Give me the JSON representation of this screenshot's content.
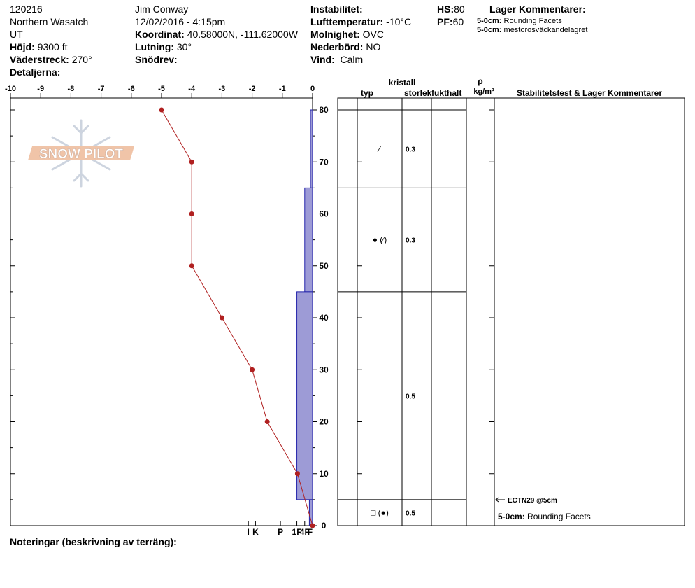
{
  "header": {
    "id": "120216",
    "region": "Northern Wasatch",
    "state": "UT",
    "elevation_label": "Höjd:",
    "elevation": "9300 ft",
    "aspect_label": "Väderstreck:",
    "aspect": "270°",
    "details_label": "Detaljerna:",
    "observer": "Jim Conway",
    "datetime": "12/02/2016 - 4:15pm",
    "coord_label": "Koordinat:",
    "coord": "40.58000N, -111.62000W",
    "slope_label": "Lutning:",
    "slope": "30°",
    "wind_loading_label": "Snödrev:",
    "instability_label": "Instabilitet:",
    "air_temp_label": "Lufttemperatur:",
    "air_temp": "-10°C",
    "sky_label": "Molnighet:",
    "sky": "OVC",
    "precip_label": "Nederbörd:",
    "precip": "NO",
    "wind_label": "Vind:",
    "wind": "Calm",
    "hs_label": "HS:",
    "hs": "80",
    "pf_label": "PF:",
    "pf": "60",
    "layer_comments_title": "Lager Kommentarer:",
    "layer_comments": [
      {
        "depth": "5-0cm:",
        "text": "Rounding Facets"
      },
      {
        "depth": "5-0cm:",
        "text": "mestorosväckandelagret"
      }
    ]
  },
  "logo_text": "SNOW PILOT",
  "notes_label": "Noteringar (beskrivning av terräng):",
  "table": {
    "header_crystal": "kristall",
    "col_type": "typ",
    "col_size": "storlek",
    "col_moisture": "fukthalt",
    "col_density_symbol": "ρ",
    "col_density_unit": "kg/m³",
    "col_comments": "Stabilitetstest & Lager Kommentarer",
    "layers": [
      {
        "top": 80,
        "bottom": 65,
        "type_symbol": "⁄",
        "size": "0.3"
      },
      {
        "top": 65,
        "bottom": 45,
        "type_symbol": "● (⁄)",
        "size": "0.3"
      },
      {
        "top": 45,
        "bottom": 5,
        "type_symbol": "",
        "size": "0.5"
      },
      {
        "top": 5,
        "bottom": 0,
        "type_symbol": "□ (●)",
        "size": "0.5"
      }
    ],
    "test_result": "ECTN29 @5cm",
    "bottom_comment_depth": "5-0cm:",
    "bottom_comment_text": "Rounding Facets"
  },
  "chart_data": {
    "type": "line",
    "temp_axis_ticks": [
      -10,
      -9,
      -8,
      -7,
      -6,
      -5,
      -4,
      -3,
      -2,
      -1,
      0
    ],
    "depth_axis_ticks": [
      0,
      10,
      20,
      30,
      40,
      50,
      60,
      70,
      80
    ],
    "hardness_ticks": [
      {
        "label": "I",
        "value": 9
      },
      {
        "label": "K",
        "value": 8
      },
      {
        "label": "P",
        "value": 4.5
      },
      {
        "label": "1F",
        "value": 2.2
      },
      {
        "label": "4F",
        "value": 1.1
      },
      {
        "label": "F",
        "value": 0.35
      }
    ],
    "temperature_profile": {
      "depth": [
        80,
        70,
        60,
        50,
        40,
        30,
        20,
        10,
        0
      ],
      "temp": [
        -5,
        -4,
        -4,
        -4,
        -3,
        -2,
        -1.5,
        -0.5,
        0
      ]
    },
    "hardness_profile": [
      {
        "top": 80,
        "bottom": 65,
        "hardness": 0.3
      },
      {
        "top": 65,
        "bottom": 45,
        "hardness": 1.1
      },
      {
        "top": 45,
        "bottom": 5,
        "hardness": 2.2
      },
      {
        "top": 5,
        "bottom": 0,
        "hardness": 0.45
      }
    ],
    "colors": {
      "hardness_fill": "#9d9bd6",
      "hardness_stroke": "#2222aa",
      "temp_line": "#b02020"
    }
  }
}
